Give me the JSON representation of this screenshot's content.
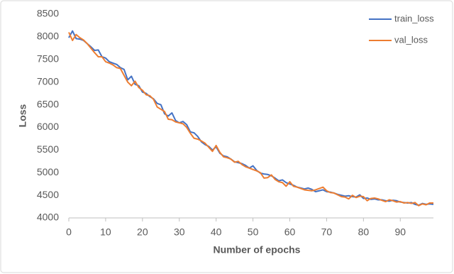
{
  "chart_data": {
    "type": "line",
    "x_label": "Number of epochs",
    "y_label": "Loss",
    "x": [
      0,
      1,
      2,
      3,
      4,
      5,
      6,
      7,
      8,
      9,
      10,
      11,
      12,
      13,
      14,
      15,
      16,
      17,
      18,
      19,
      20,
      21,
      22,
      23,
      24,
      25,
      26,
      27,
      28,
      29,
      30,
      31,
      32,
      33,
      34,
      35,
      36,
      37,
      38,
      39,
      40,
      41,
      42,
      43,
      44,
      45,
      46,
      47,
      48,
      49,
      50,
      51,
      52,
      53,
      54,
      55,
      56,
      57,
      58,
      59,
      60,
      61,
      62,
      63,
      64,
      65,
      66,
      67,
      68,
      69,
      70,
      71,
      72,
      73,
      74,
      75,
      76,
      77,
      78,
      79,
      80,
      81,
      82,
      83,
      84,
      85,
      86,
      87,
      88,
      89,
      90,
      91,
      92,
      93,
      94,
      95,
      96,
      97,
      98,
      99
    ],
    "series": [
      {
        "name": "train_loss",
        "color": "#4472c4",
        "values": [
          7980,
          8130,
          7960,
          7950,
          7920,
          7850,
          7780,
          7700,
          7710,
          7560,
          7530,
          7450,
          7420,
          7390,
          7320,
          7280,
          7050,
          7130,
          6950,
          6920,
          6780,
          6750,
          6680,
          6630,
          6530,
          6500,
          6300,
          6250,
          6320,
          6150,
          6100,
          6130,
          6060,
          5900,
          5880,
          5800,
          5680,
          5620,
          5580,
          5500,
          5570,
          5430,
          5370,
          5350,
          5300,
          5240,
          5220,
          5200,
          5160,
          5100,
          5150,
          5050,
          4990,
          4970,
          4960,
          4930,
          4880,
          4820,
          4840,
          4780,
          4750,
          4720,
          4680,
          4660,
          4640,
          4660,
          4630,
          4580,
          4600,
          4620,
          4580,
          4570,
          4550,
          4520,
          4500,
          4480,
          4490,
          4470,
          4460,
          4510,
          4430,
          4440,
          4410,
          4420,
          4400,
          4400,
          4380,
          4370,
          4390,
          4380,
          4350,
          4340,
          4330,
          4340,
          4300,
          4280,
          4320,
          4300,
          4310,
          4300
        ]
      },
      {
        "name": "val_loss",
        "color": "#ed7d31",
        "values": [
          8100,
          7920,
          8050,
          7980,
          7930,
          7850,
          7750,
          7650,
          7560,
          7560,
          7450,
          7420,
          7380,
          7320,
          7300,
          7150,
          7000,
          6920,
          7020,
          6880,
          6820,
          6720,
          6700,
          6620,
          6450,
          6400,
          6350,
          6180,
          6170,
          6120,
          6100,
          6080,
          6000,
          5870,
          5760,
          5740,
          5700,
          5650,
          5560,
          5470,
          5600,
          5450,
          5350,
          5330,
          5300,
          5230,
          5250,
          5180,
          5130,
          5100,
          5070,
          5040,
          5000,
          4880,
          4890,
          4950,
          4850,
          4800,
          4780,
          4700,
          4800,
          4700,
          4680,
          4650,
          4620,
          4610,
          4600,
          4620,
          4650,
          4680,
          4600,
          4560,
          4550,
          4510,
          4470,
          4460,
          4420,
          4500,
          4450,
          4480,
          4470,
          4380,
          4430,
          4440,
          4420,
          4390,
          4360,
          4400,
          4380,
          4350,
          4360,
          4330,
          4340,
          4320,
          4340,
          4270,
          4310,
          4290,
          4330,
          4330
        ]
      }
    ],
    "xlim": [
      0,
      99
    ],
    "xticks": [
      0,
      10,
      20,
      30,
      40,
      50,
      60,
      70,
      80,
      90
    ],
    "ylim": [
      4000,
      8500
    ],
    "yticks": [
      4000,
      4500,
      5000,
      5500,
      6000,
      6500,
      7000,
      7500,
      8000,
      8500
    ],
    "grid": false,
    "legend": "top-right"
  }
}
